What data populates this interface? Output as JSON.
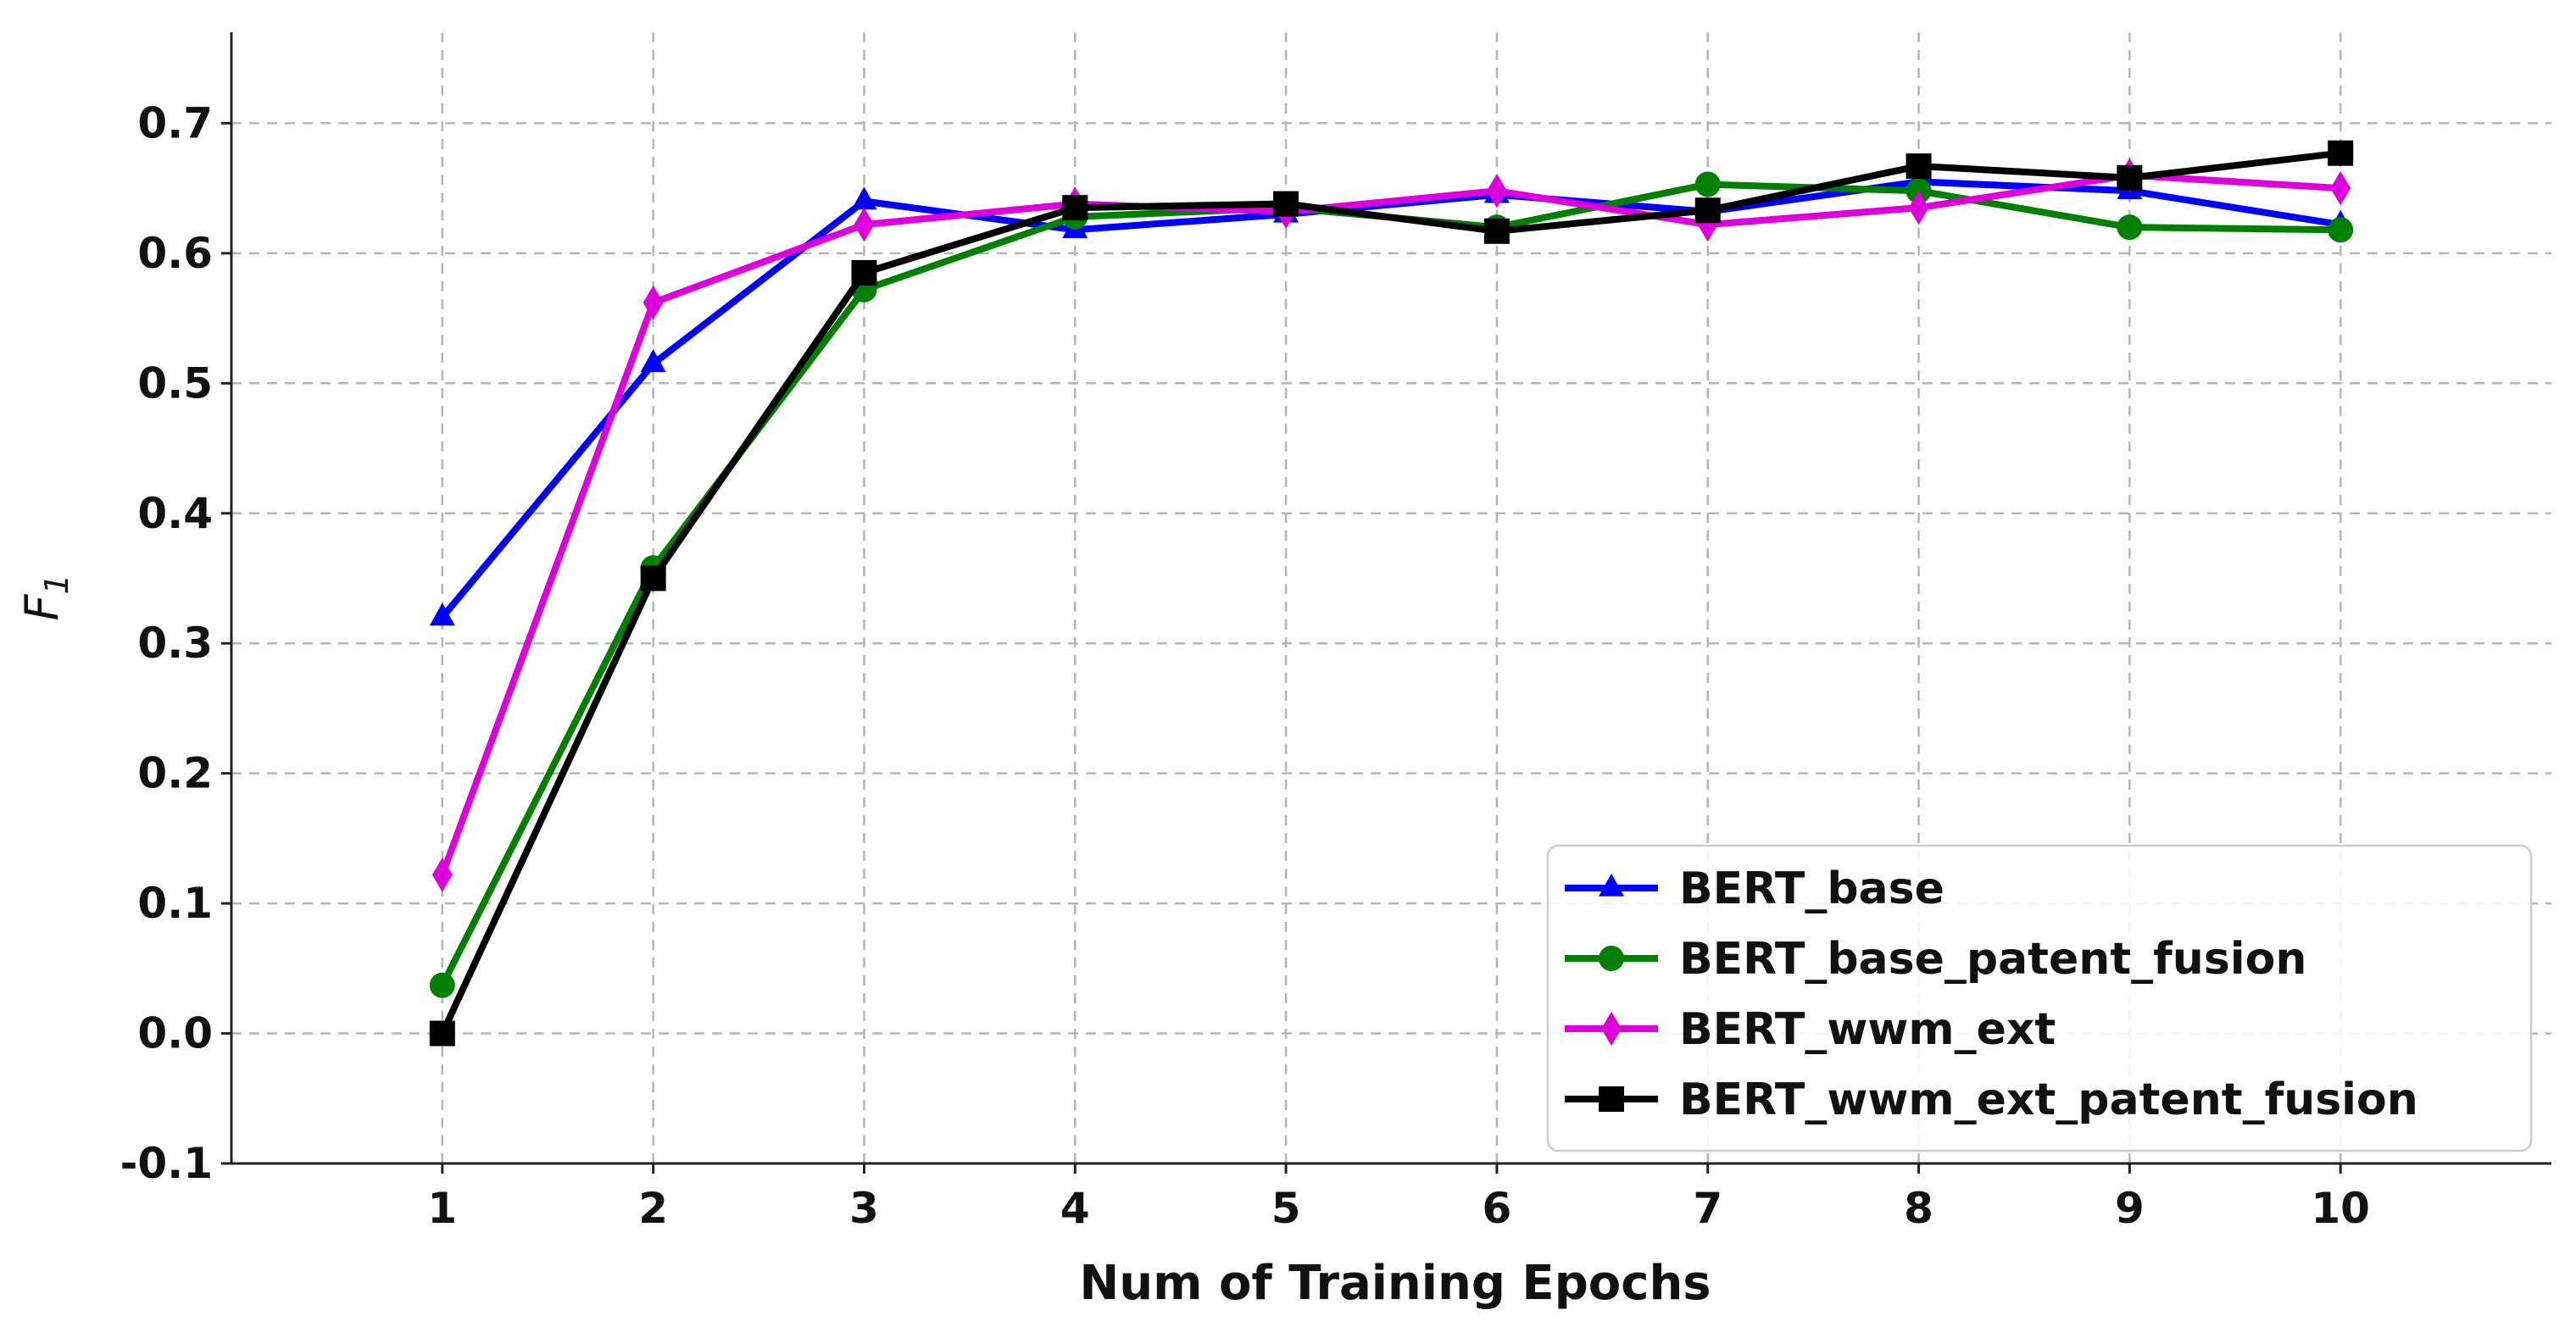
{
  "chart_data": {
    "type": "line",
    "title": "",
    "xlabel": "Num of Training Epochs",
    "ylabel": "F",
    "ylabel_sub": "1",
    "x": [
      1,
      2,
      3,
      4,
      5,
      6,
      7,
      8,
      9,
      10
    ],
    "xlim": [
      0,
      11
    ],
    "ylim": [
      -0.1,
      0.77
    ],
    "yticks": [
      "-0.1",
      "0.0",
      "0.1",
      "0.2",
      "0.3",
      "0.4",
      "0.5",
      "0.6",
      "0.7"
    ],
    "xticks": [
      "1",
      "2",
      "3",
      "4",
      "5",
      "6",
      "7",
      "8",
      "9",
      "10"
    ],
    "grid": true,
    "legend_position": "lower-right",
    "series": [
      {
        "name": "BERT_base",
        "color": "#0000ff",
        "marker": "triangle",
        "values": [
          0.32,
          0.515,
          0.64,
          0.618,
          0.63,
          0.645,
          0.632,
          0.655,
          0.648,
          0.622
        ]
      },
      {
        "name": "BERT_base_patent_fusion",
        "color": "#008000",
        "marker": "circle",
        "values": [
          0.037,
          0.358,
          0.572,
          0.628,
          0.635,
          0.62,
          0.653,
          0.648,
          0.62,
          0.618
        ]
      },
      {
        "name": "BERT_wwm_ext",
        "color": "#dd00dd",
        "marker": "diamond",
        "values": [
          0.122,
          0.562,
          0.622,
          0.638,
          0.632,
          0.648,
          0.622,
          0.635,
          0.66,
          0.65
        ]
      },
      {
        "name": "BERT_wwm_ext_patent_fusion",
        "color": "#000000",
        "marker": "square",
        "values": [
          0.0,
          0.35,
          0.585,
          0.635,
          0.638,
          0.617,
          0.633,
          0.667,
          0.658,
          0.677
        ]
      }
    ]
  }
}
